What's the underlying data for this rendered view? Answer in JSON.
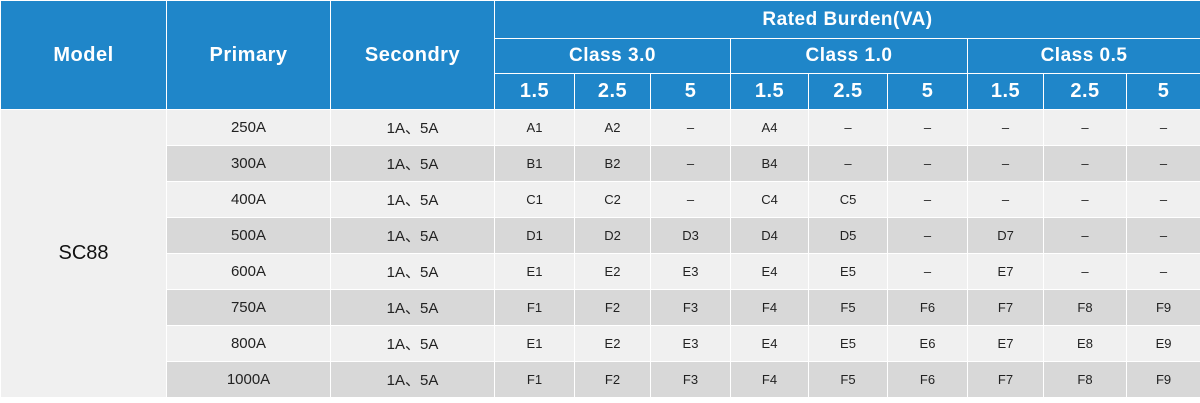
{
  "header": {
    "model": "Model",
    "primary": "Primary",
    "secondary": "Secondry",
    "rated_burden": "Rated Burden(VA)",
    "classes": [
      "Class 3.0",
      "Class 1.0",
      "Class 0.5"
    ],
    "burdens": [
      "1.5",
      "2.5",
      "5",
      "1.5",
      "2.5",
      "5",
      "1.5",
      "2.5",
      "5"
    ]
  },
  "model": "SC88",
  "rows": [
    {
      "primary": "250A",
      "secondary": "1A、5A",
      "cells": [
        "A1",
        "A2",
        "–",
        "A4",
        "–",
        "–",
        "–",
        "–",
        "–"
      ]
    },
    {
      "primary": "300A",
      "secondary": "1A、5A",
      "cells": [
        "B1",
        "B2",
        "–",
        "B4",
        "–",
        "–",
        "–",
        "–",
        "–"
      ]
    },
    {
      "primary": "400A",
      "secondary": "1A、5A",
      "cells": [
        "C1",
        "C2",
        "–",
        "C4",
        "C5",
        "–",
        "–",
        "–",
        "–"
      ]
    },
    {
      "primary": "500A",
      "secondary": "1A、5A",
      "cells": [
        "D1",
        "D2",
        "D3",
        "D4",
        "D5",
        "–",
        "D7",
        "–",
        "–"
      ]
    },
    {
      "primary": "600A",
      "secondary": "1A、5A",
      "cells": [
        "E1",
        "E2",
        "E3",
        "E4",
        "E5",
        "–",
        "E7",
        "–",
        "–"
      ]
    },
    {
      "primary": "750A",
      "secondary": "1A、5A",
      "cells": [
        "F1",
        "F2",
        "F3",
        "F4",
        "F5",
        "F6",
        "F7",
        "F8",
        "F9"
      ]
    },
    {
      "primary": "800A",
      "secondary": "1A、5A",
      "cells": [
        "E1",
        "E2",
        "E3",
        "E4",
        "E5",
        "E6",
        "E7",
        "E8",
        "E9"
      ]
    },
    {
      "primary": "1000A",
      "secondary": "1A、5A",
      "cells": [
        "F1",
        "F2",
        "F3",
        "F4",
        "F5",
        "F6",
        "F7",
        "F8",
        "F9"
      ]
    }
  ],
  "colors": {
    "header_bg": "#1f86c9",
    "row_light": "#f0f0f0",
    "row_dark": "#d8d8d8"
  }
}
